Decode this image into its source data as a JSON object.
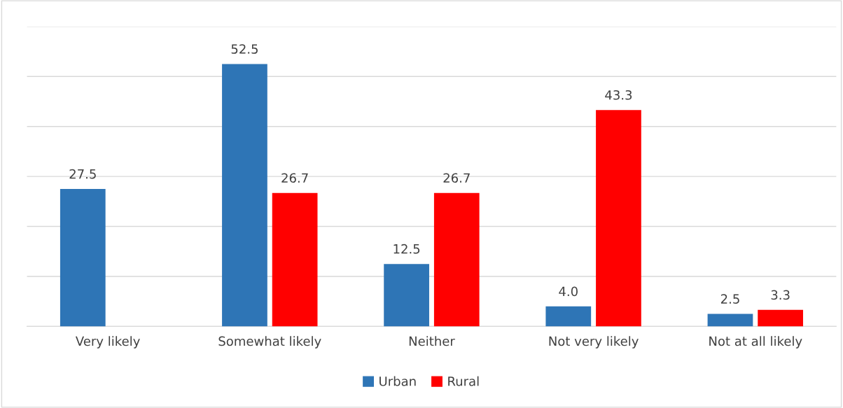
{
  "chart_data": {
    "type": "bar",
    "categories": [
      "Very likely",
      "Somewhat likely",
      "Neither",
      "Not very likely",
      "Not at all likely"
    ],
    "series": [
      {
        "name": "Urban",
        "color": "#2e75b6",
        "values": [
          27.5,
          52.5,
          12.5,
          4.0,
          2.5
        ],
        "value_labels": [
          "27.5",
          "52.5",
          "12.5",
          "4.0",
          "2.5"
        ]
      },
      {
        "name": "Rural",
        "color": "#ff0000",
        "values": [
          null,
          26.7,
          26.7,
          43.3,
          3.3
        ],
        "value_labels": [
          null,
          "26.7",
          "26.7",
          "43.3",
          "3.3"
        ]
      }
    ],
    "ylim": [
      0,
      60
    ],
    "yticks": [
      {
        "value": 0,
        "label": null
      },
      {
        "value": 10,
        "label": null
      },
      {
        "value": 20,
        "label": null
      },
      {
        "value": 30,
        "label": null
      },
      {
        "value": 40,
        "label": null
      },
      {
        "value": 50,
        "label": null
      },
      {
        "value": 60,
        "label": null
      }
    ],
    "tick_labels": "x",
    "grid": "y",
    "legend": "bottom"
  }
}
